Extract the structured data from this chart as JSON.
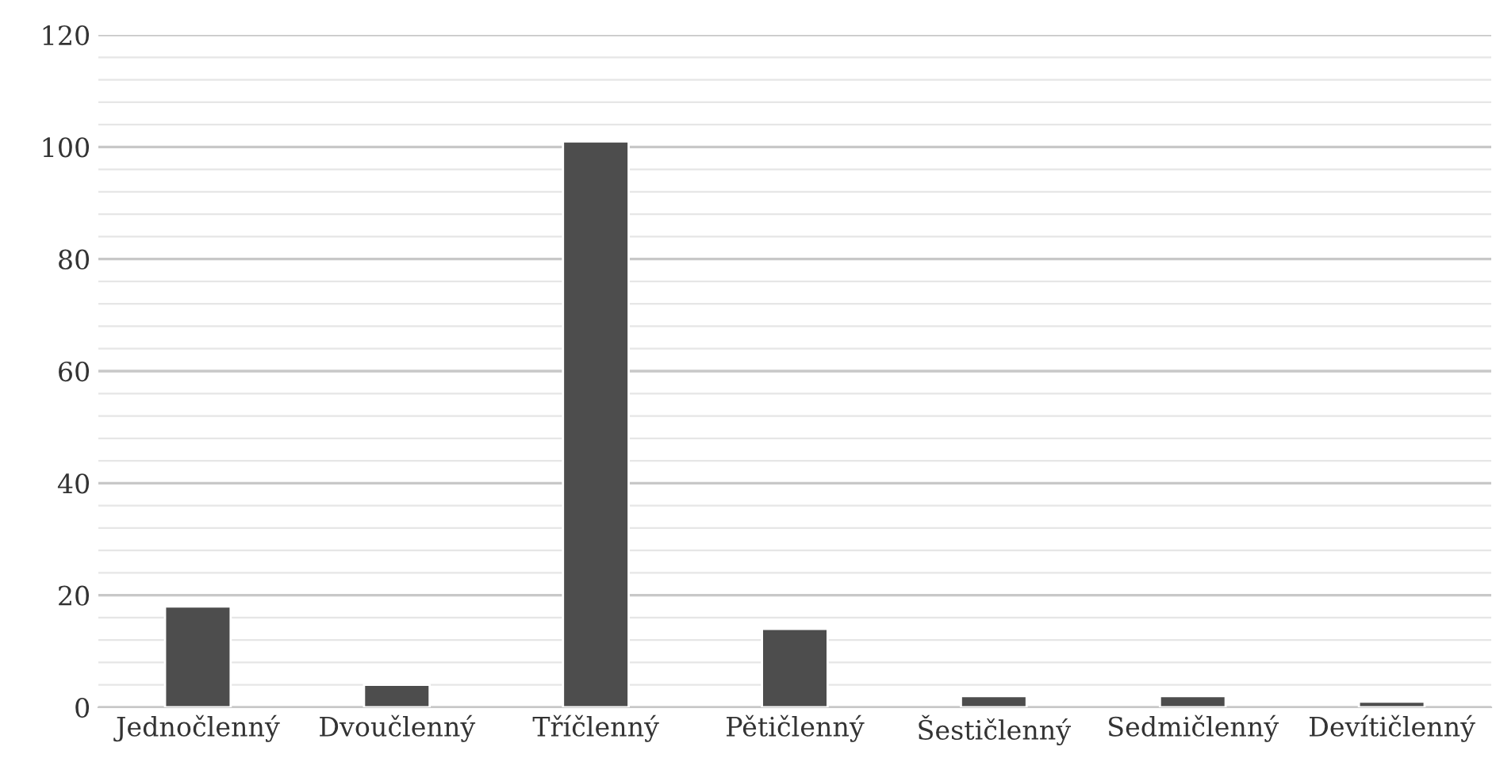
{
  "chart_data": {
    "type": "bar",
    "categories": [
      "Jednočlenný",
      "Dvoučlenný",
      "Tříčlenný",
      "Pětičlenný",
      "Šestičlenný",
      "Sedmičlenný",
      "Devítičlenný"
    ],
    "values": [
      18,
      4,
      101,
      14,
      2,
      2,
      1
    ],
    "color": "#4d4d4d",
    "ylim": [
      0,
      120
    ],
    "yticks": [
      0,
      {
        "value": 4,
        "label": null
      },
      {
        "value": 8,
        "label": null
      },
      {
        "value": 12,
        "label": null
      },
      {
        "value": 16,
        "label": null
      },
      20,
      {
        "value": 24,
        "label": null
      },
      {
        "value": 28,
        "label": null
      },
      {
        "value": 32,
        "label": null
      },
      {
        "value": 36,
        "label": null
      },
      40,
      {
        "value": 44,
        "label": null
      },
      {
        "value": 48,
        "label": null
      },
      {
        "value": 52,
        "label": null
      },
      {
        "value": 56,
        "label": null
      },
      60,
      {
        "value": 64,
        "label": null
      },
      {
        "value": 68,
        "label": null
      },
      {
        "value": 72,
        "label": null
      },
      {
        "value": 76,
        "label": null
      },
      80,
      {
        "value": 84,
        "label": null
      },
      {
        "value": 88,
        "label": null
      },
      {
        "value": 92,
        "label": null
      },
      {
        "value": 96,
        "label": null
      },
      100,
      {
        "value": 104,
        "label": null
      },
      {
        "value": 108,
        "label": null
      },
      {
        "value": 112,
        "label": null
      },
      {
        "value": 116,
        "label": null
      },
      120
    ],
    "grid": "y"
  }
}
